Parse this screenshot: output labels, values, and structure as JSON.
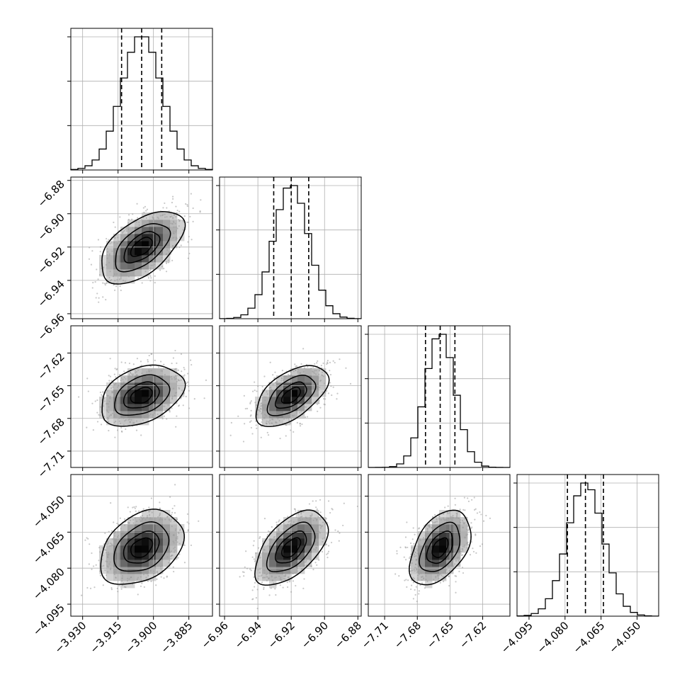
{
  "chart_data": {
    "type": "corner",
    "n_parameters": 4,
    "grid": true,
    "parameters": [
      {
        "index": 0,
        "range": [
          -3.935,
          -3.875
        ],
        "ticks": [
          -3.93,
          -3.915,
          -3.9,
          -3.885
        ],
        "tick_labels": [
          "−3.930",
          "−3.915",
          "−3.900",
          "−3.885"
        ],
        "mean": -3.905,
        "sd": 0.0085,
        "quantiles": [
          -3.9135,
          -3.905,
          -3.8965
        ]
      },
      {
        "index": 1,
        "range": [
          -6.963,
          -6.878
        ],
        "ticks": [
          -6.96,
          -6.94,
          -6.92,
          -6.9,
          -6.88
        ],
        "tick_labels": [
          "−6.96",
          "−6.94",
          "−6.92",
          "−6.90",
          "−6.88"
        ],
        "mean": -6.92,
        "sd": 0.0105,
        "quantiles": [
          -6.9305,
          -6.92,
          -6.9095
        ]
      },
      {
        "index": 2,
        "range": [
          -7.725,
          -7.595
        ],
        "ticks": [
          -7.71,
          -7.68,
          -7.65,
          -7.62
        ],
        "tick_labels": [
          "−7.71",
          "−7.68",
          "−7.65",
          "−7.62"
        ],
        "mean": -7.659,
        "sd": 0.0135,
        "quantiles": [
          -7.6725,
          -7.659,
          -7.6455
        ]
      },
      {
        "index": 3,
        "range": [
          -4.1,
          -4.041
        ],
        "ticks": [
          -4.095,
          -4.08,
          -4.065,
          -4.05
        ],
        "tick_labels": [
          "−4.095",
          "−4.080",
          "−4.065",
          "−4.050"
        ],
        "mean": -4.0715,
        "sd": 0.0075,
        "quantiles": [
          -4.079,
          -4.0715,
          -4.064
        ]
      }
    ],
    "correlations": [
      [
        1.0,
        0.55,
        0.35,
        0.35
      ],
      [
        0.55,
        1.0,
        0.55,
        0.55
      ],
      [
        0.35,
        0.55,
        1.0,
        0.45
      ],
      [
        0.35,
        0.55,
        0.45,
        1.0
      ]
    ],
    "contour_levels_sigma": [
      0.5,
      1.0,
      1.5,
      2.0
    ]
  }
}
